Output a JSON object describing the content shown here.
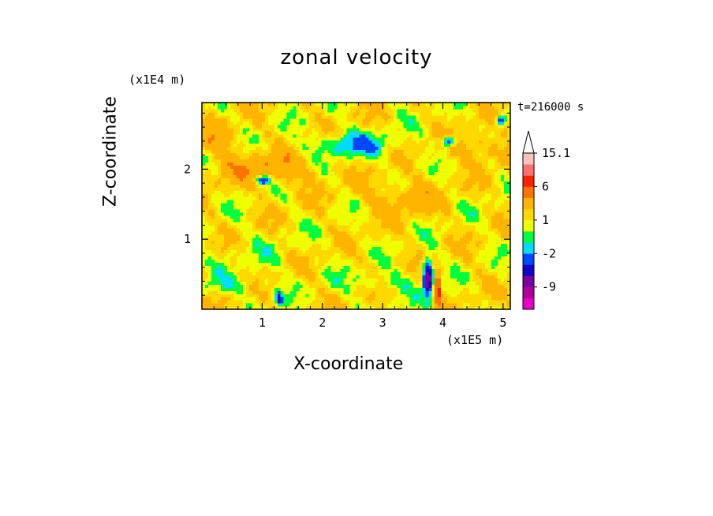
{
  "chart_data": {
    "type": "heatmap",
    "title": "zonal velocity",
    "xlabel": "X-coordinate",
    "ylabel": "Z-coordinate",
    "x_unit": "(x1E5 m)",
    "z_unit": "(x1E4 m)",
    "time_label": "t=216000 s",
    "xlim": [
      0,
      5.12
    ],
    "ylim": [
      0,
      2.95
    ],
    "x_ticks": [
      "1",
      "2",
      "3",
      "4",
      "5"
    ],
    "y_ticks": [
      "1",
      "2"
    ],
    "colorbar": {
      "labels": [
        "15.1",
        "6",
        "1",
        "-2",
        "-9"
      ],
      "label_levels": [
        15.1,
        6,
        1,
        -2,
        -9
      ],
      "levels": [
        -15,
        -12,
        -9,
        -6,
        -4,
        -2,
        -1,
        0,
        1,
        2,
        4,
        6,
        9,
        12,
        15.1
      ],
      "colors": [
        "#e800c8",
        "#b0009c",
        "#7a00a0",
        "#1400c8",
        "#0048ff",
        "#00dcff",
        "#00ff40",
        "#f0ff00",
        "#ffd800",
        "#ffb400",
        "#ff7400",
        "#ff2000",
        "#ff7070",
        "#ffc0c0"
      ],
      "extend_top": true
    },
    "description_features": {
      "dominant_value_range": [
        -1,
        2
      ],
      "min_region": {
        "x": 3.8,
        "z": 0.4,
        "value": -9
      },
      "negative_band": {
        "x_range": [
          1.9,
          3.1
        ],
        "z": 2.3,
        "value": -2
      }
    }
  }
}
